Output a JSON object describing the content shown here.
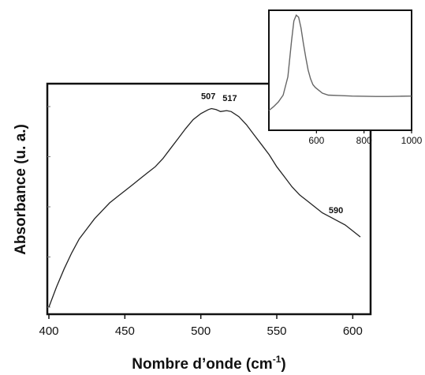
{
  "chart_data": [
    {
      "type": "line",
      "title": "",
      "xlabel": "Nombre d’onde (cm",
      "xlabel_sup": "-1",
      "xlabel_close": ")",
      "ylabel": "Absorbance (u. a.)",
      "xlim": [
        400,
        605
      ],
      "x_ticks": [
        400,
        450,
        500,
        550,
        600
      ],
      "y_ticks_shown": false,
      "grid": false,
      "legend": "none",
      "line_color": "#222222",
      "series": [
        {
          "x": [
            400,
            405,
            410,
            415,
            420,
            425,
            430,
            435,
            440,
            445,
            450,
            455,
            460,
            465,
            470,
            475,
            480,
            485,
            490,
            495,
            500,
            505,
            507,
            510,
            513,
            517,
            520,
            525,
            530,
            535,
            540,
            545,
            550,
            555,
            560,
            565,
            570,
            575,
            580,
            585,
            590,
            595,
            600,
            605
          ],
          "y": [
            0.0,
            0.1,
            0.19,
            0.27,
            0.34,
            0.39,
            0.44,
            0.48,
            0.52,
            0.55,
            0.58,
            0.61,
            0.64,
            0.67,
            0.7,
            0.74,
            0.79,
            0.84,
            0.89,
            0.935,
            0.965,
            0.985,
            0.99,
            0.985,
            0.975,
            0.98,
            0.975,
            0.95,
            0.91,
            0.86,
            0.81,
            0.76,
            0.7,
            0.65,
            0.6,
            0.56,
            0.53,
            0.5,
            0.47,
            0.45,
            0.43,
            0.41,
            0.38,
            0.35
          ]
        }
      ],
      "annotations": [
        {
          "text": "507",
          "x": 507,
          "y": 0.99
        },
        {
          "text": "517",
          "x": 517,
          "y": 0.98
        },
        {
          "text": "590",
          "x": 590,
          "y": 0.43
        }
      ]
    },
    {
      "type": "line",
      "title": "",
      "xlabel": "",
      "ylabel": "",
      "xlim": [
        400,
        1000
      ],
      "x_ticks": [
        600,
        800,
        1000
      ],
      "y_ticks_shown": false,
      "grid": false,
      "legend": "none",
      "line_color": "#666666",
      "series": [
        {
          "x": [
            400,
            420,
            440,
            460,
            480,
            495,
            505,
            515,
            525,
            535,
            545,
            555,
            565,
            575,
            585,
            595,
            610,
            625,
            650,
            700,
            750,
            800,
            850,
            900,
            950,
            1000
          ],
          "y": [
            0.0,
            0.04,
            0.09,
            0.16,
            0.35,
            0.72,
            0.93,
            0.99,
            0.97,
            0.86,
            0.7,
            0.55,
            0.42,
            0.33,
            0.27,
            0.24,
            0.21,
            0.18,
            0.16,
            0.155,
            0.15,
            0.148,
            0.146,
            0.146,
            0.148,
            0.15
          ]
        }
      ]
    }
  ]
}
